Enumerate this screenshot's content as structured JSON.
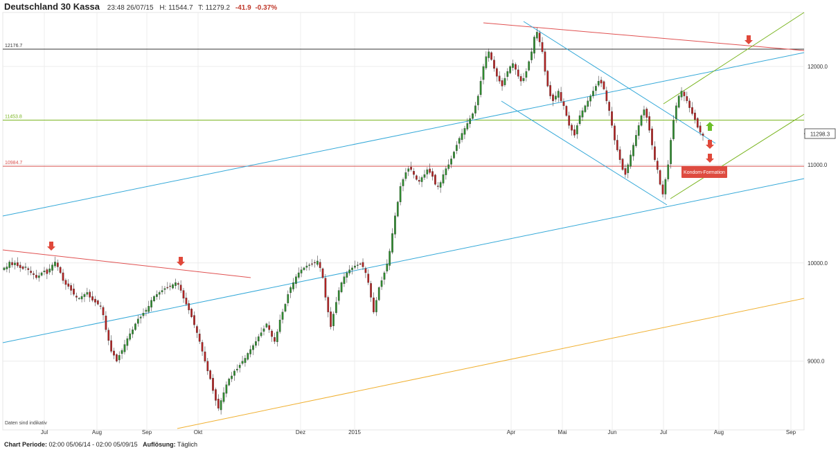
{
  "header": {
    "title": "Deutschland 30 Kassa",
    "datetime": "23:48 26/07/15",
    "high_label": "H:",
    "high_value": "11544.7",
    "low_label": "T:",
    "low_value": "11279.2",
    "change": "-41.9",
    "change_pct": "-0.37%"
  },
  "footer": {
    "period_label": "Chart Periode:",
    "period_value": "02:00 05/06/14 - 02:00 05/09/15",
    "resolution_label": "Auflösung:",
    "resolution_value": "Täglich"
  },
  "colors": {
    "up": "#2e8b2e",
    "down": "#b22222",
    "red_line": "#e05050",
    "blue_line": "#33a8d8",
    "green_line": "#7ab520",
    "orange_line": "#f0b030",
    "arrow_red": "#e0483a",
    "arrow_green": "#6bbf2a"
  },
  "chart_data": {
    "type": "candlestick",
    "x_tick_labels": [
      "Jul",
      "Aug",
      "Sep",
      "Okt",
      "Dez",
      "2015",
      "Apr",
      "Mai",
      "Jun",
      "Jul",
      "Aug",
      "Sep"
    ],
    "y_tick_labels": [
      "12000.0",
      "11000.0",
      "10000.0",
      "9000.0"
    ],
    "y_ticks": [
      12000,
      11000,
      10000,
      9000
    ],
    "ylim": [
      8300,
      12550
    ],
    "last_price": 11298.3,
    "last_price_label": "11298.3",
    "horizontal_levels": [
      {
        "value": 12176.7,
        "label": "12176.7",
        "color": "#333333"
      },
      {
        "value": 11453.8,
        "label": "11453.8",
        "color": "#7ab520"
      },
      {
        "value": 10984.7,
        "label": "10984.7",
        "color": "#d9534f"
      }
    ],
    "annotation": "Kondom-Formation",
    "note": "Daten sind indikativ",
    "closes": [
      9950,
      9960,
      10010,
      9980,
      10000,
      9970,
      9950,
      9940,
      9960,
      9930,
      9900,
      9880,
      9850,
      9870,
      9900,
      9920,
      9890,
      9940,
      9980,
      10010,
      9960,
      9900,
      9820,
      9780,
      9760,
      9720,
      9680,
      9650,
      9640,
      9660,
      9680,
      9700,
      9650,
      9620,
      9600,
      9580,
      9560,
      9470,
      9320,
      9210,
      9100,
      9060,
      9000,
      9060,
      9110,
      9170,
      9230,
      9280,
      9320,
      9380,
      9430,
      9450,
      9490,
      9520,
      9560,
      9620,
      9660,
      9680,
      9700,
      9720,
      9740,
      9750,
      9760,
      9780,
      9800,
      9780,
      9720,
      9640,
      9580,
      9520,
      9450,
      9370,
      9290,
      9200,
      9100,
      9000,
      8900,
      8820,
      8700,
      8600,
      8520,
      8600,
      8680,
      8760,
      8820,
      8850,
      8900,
      8920,
      8960,
      9000,
      9030,
      9080,
      9120,
      9160,
      9200,
      9250,
      9290,
      9330,
      9380,
      9320,
      9250,
      9200,
      9300,
      9420,
      9500,
      9580,
      9680,
      9750,
      9800,
      9860,
      9900,
      9930,
      9950,
      9970,
      9980,
      9990,
      10000,
      10020,
      9950,
      9850,
      9650,
      9500,
      9350,
      9480,
      9600,
      9720,
      9800,
      9860,
      9900,
      9930,
      9950,
      9970,
      9980,
      9990,
      9960,
      9900,
      9800,
      9650,
      9500,
      9620,
      9750,
      9820,
      9900,
      9990,
      10120,
      10300,
      10480,
      10620,
      10780,
      10850,
      10920,
      10960,
      10950,
      10900,
      10850,
      10830,
      10870,
      10900,
      10950,
      10920,
      10880,
      10800,
      10780,
      10820,
      10900,
      10960,
      11000,
      11060,
      11130,
      11200,
      11270,
      11320,
      11370,
      11420,
      11470,
      11520,
      11600,
      11700,
      11850,
      12000,
      12100,
      12150,
      12070,
      11980,
      11900,
      11850,
      11800,
      11880,
      11950,
      12000,
      12030,
      11970,
      11900,
      11850,
      11880,
      11950,
      12050,
      12150,
      12300,
      12350,
      12250,
      12150,
      11950,
      11800,
      11700,
      11650,
      11700,
      11750,
      11650,
      11600,
      11500,
      11400,
      11350,
      11300,
      11400,
      11500,
      11550,
      11600,
      11650,
      11700,
      11750,
      11800,
      11850,
      11830,
      11770,
      11650,
      11550,
      11400,
      11250,
      11150,
      11050,
      10950,
      10900,
      11000,
      11100,
      11200,
      11300,
      11400,
      11500,
      11560,
      11480,
      11350,
      11200,
      11050,
      10950,
      10800,
      10700,
      10850,
      11000,
      11250,
      11450,
      11600,
      11700,
      11750,
      11700,
      11650,
      11580,
      11520,
      11460,
      11380,
      11330,
      11298
    ]
  }
}
